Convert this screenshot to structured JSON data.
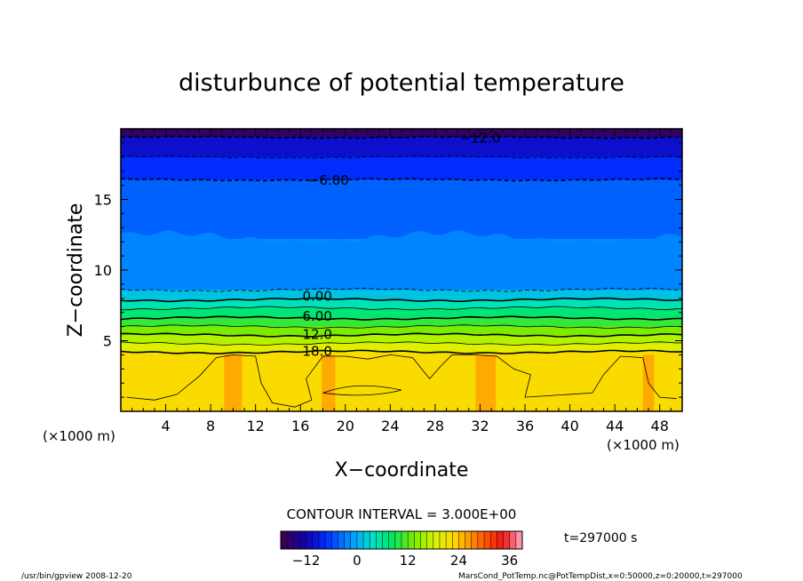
{
  "chart_data": {
    "type": "contour",
    "title": "disturbunce of potential temperature",
    "xlabel": "X−coordinate",
    "ylabel": "Z−coordinate",
    "x_unit": "(×1000 m)",
    "y_unit": "(×1000 m)",
    "xlim": [
      0,
      50
    ],
    "ylim": [
      0,
      20
    ],
    "x_ticks": [
      4,
      8,
      12,
      16,
      20,
      24,
      28,
      32,
      36,
      40,
      44,
      48
    ],
    "y_ticks": [
      5,
      10,
      15
    ],
    "contour_interval_text": "CONTOUR INTERVAL = 3.000E+00",
    "time_text": "t=297000 s",
    "colorbar": {
      "ticks": [
        -12,
        0,
        12,
        24,
        36
      ],
      "min": -18,
      "max": 39
    },
    "contour_labels": [
      {
        "text": "−12.0",
        "x": 32,
        "z": 19.4
      },
      {
        "text": "−6.00",
        "x": 18.5,
        "z": 16.4
      },
      {
        "text": "0.00",
        "x": 17.5,
        "z": 8.2
      },
      {
        "text": "6.00",
        "x": 17.5,
        "z": 6.8
      },
      {
        "text": "12.0",
        "x": 17.5,
        "z": 5.5
      },
      {
        "text": "18.0",
        "x": 17.5,
        "z": 4.3
      }
    ],
    "levels": [
      {
        "value": -12,
        "z": 19.4,
        "style": "dashed",
        "weight": "bold"
      },
      {
        "value": -9,
        "z": 18.0,
        "style": "dashed",
        "weight": "thin"
      },
      {
        "value": -6,
        "z": 16.4,
        "style": "dashed",
        "weight": "bold"
      },
      {
        "value": -3,
        "z": 8.6,
        "style": "dashed",
        "weight": "thin"
      },
      {
        "value": 0,
        "z": 7.9,
        "style": "solid",
        "weight": "bold"
      },
      {
        "value": 3,
        "z": 7.3,
        "style": "solid",
        "weight": "thin"
      },
      {
        "value": 6,
        "z": 6.6,
        "style": "solid",
        "weight": "bold"
      },
      {
        "value": 9,
        "z": 6.0,
        "style": "solid",
        "weight": "thin"
      },
      {
        "value": 12,
        "z": 5.4,
        "style": "solid",
        "weight": "bold"
      },
      {
        "value": 15,
        "z": 4.8,
        "style": "solid",
        "weight": "thin"
      },
      {
        "value": 18,
        "z": 4.2,
        "style": "solid",
        "weight": "bold"
      }
    ]
  },
  "footer": {
    "program": "/usr/bin/gpview   2008-12-20",
    "source": "MarsCond_PotTemp.nc@PotTempDist,x=0:50000,z=0:20000,t=297000"
  }
}
